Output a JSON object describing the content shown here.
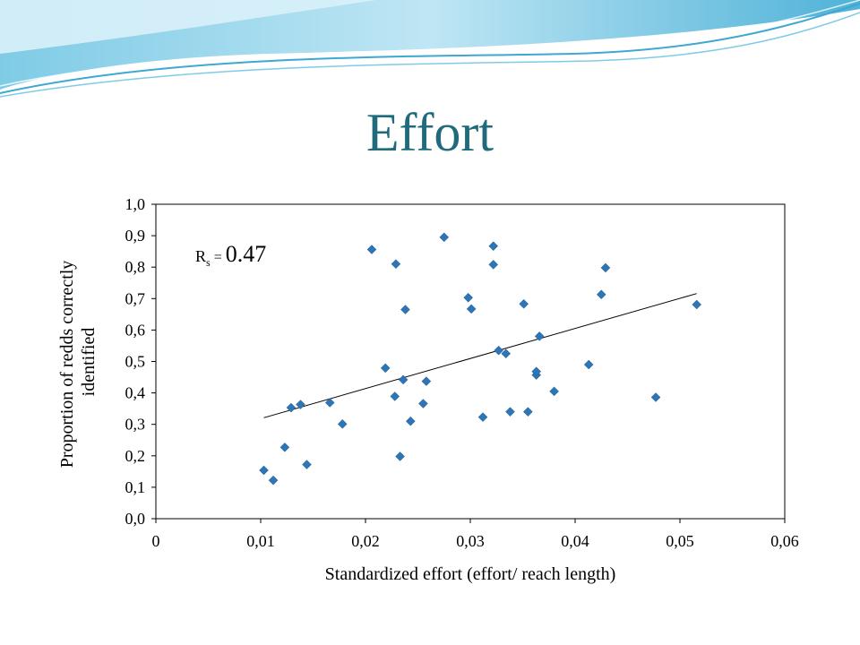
{
  "slide": {
    "title": "Effort"
  },
  "colors": {
    "title": "#1f6b7d",
    "marker": "#2e75b6",
    "wave_light": "#bfe6f4",
    "wave_mid": "#7fcbe6",
    "wave_dark": "#3fa8d2"
  },
  "chart_data": {
    "type": "scatter",
    "xlabel": "Standardized effort (effort/ reach length)",
    "ylabel": "Proportion of redds correctly identified",
    "xlim": [
      0,
      0.06
    ],
    "ylim": [
      0,
      1.0
    ],
    "x_ticks": [
      0,
      0.01,
      0.02,
      0.03,
      0.04,
      0.05,
      0.06
    ],
    "y_ticks": [
      0.0,
      0.1,
      0.2,
      0.3,
      0.4,
      0.5,
      0.6,
      0.7,
      0.8,
      0.9,
      1.0
    ],
    "x_tick_labels": [
      "0",
      "0,01",
      "0,02",
      "0,03",
      "0,04",
      "0,05",
      "0,06"
    ],
    "y_tick_labels": [
      "0,0",
      "0,1",
      "0,2",
      "0,3",
      "0,4",
      "0,5",
      "0,6",
      "0,7",
      "0,8",
      "0,9",
      "1,0"
    ],
    "grid": false,
    "annotation": {
      "label": "R",
      "subscript": "s",
      "equals": " = ",
      "value": "0.47"
    },
    "trendline": {
      "x": [
        0.0103,
        0.0516
      ],
      "y": [
        0.321,
        0.716
      ]
    },
    "points": [
      {
        "x": 0.0103,
        "y": 0.154
      },
      {
        "x": 0.0112,
        "y": 0.122
      },
      {
        "x": 0.0123,
        "y": 0.227
      },
      {
        "x": 0.0129,
        "y": 0.353
      },
      {
        "x": 0.0138,
        "y": 0.363
      },
      {
        "x": 0.0144,
        "y": 0.172
      },
      {
        "x": 0.0166,
        "y": 0.369
      },
      {
        "x": 0.0178,
        "y": 0.301
      },
      {
        "x": 0.0206,
        "y": 0.856
      },
      {
        "x": 0.0219,
        "y": 0.479
      },
      {
        "x": 0.0228,
        "y": 0.389
      },
      {
        "x": 0.0229,
        "y": 0.81
      },
      {
        "x": 0.0233,
        "y": 0.198
      },
      {
        "x": 0.0236,
        "y": 0.442
      },
      {
        "x": 0.0238,
        "y": 0.665
      },
      {
        "x": 0.0243,
        "y": 0.31
      },
      {
        "x": 0.0255,
        "y": 0.366
      },
      {
        "x": 0.0258,
        "y": 0.437
      },
      {
        "x": 0.0275,
        "y": 0.895
      },
      {
        "x": 0.0298,
        "y": 0.703
      },
      {
        "x": 0.0301,
        "y": 0.667
      },
      {
        "x": 0.0312,
        "y": 0.323
      },
      {
        "x": 0.0322,
        "y": 0.867
      },
      {
        "x": 0.0322,
        "y": 0.808
      },
      {
        "x": 0.0327,
        "y": 0.535
      },
      {
        "x": 0.0334,
        "y": 0.525
      },
      {
        "x": 0.0338,
        "y": 0.34
      },
      {
        "x": 0.0351,
        "y": 0.683
      },
      {
        "x": 0.0355,
        "y": 0.34
      },
      {
        "x": 0.0363,
        "y": 0.457
      },
      {
        "x": 0.0363,
        "y": 0.468
      },
      {
        "x": 0.0366,
        "y": 0.58
      },
      {
        "x": 0.038,
        "y": 0.405
      },
      {
        "x": 0.0413,
        "y": 0.49
      },
      {
        "x": 0.0425,
        "y": 0.713
      },
      {
        "x": 0.0429,
        "y": 0.798
      },
      {
        "x": 0.0477,
        "y": 0.386
      },
      {
        "x": 0.0516,
        "y": 0.681
      }
    ]
  }
}
